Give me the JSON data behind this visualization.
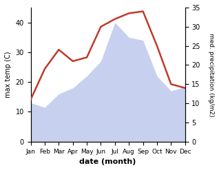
{
  "months": [
    "Jan",
    "Feb",
    "Mar",
    "Apr",
    "May",
    "Jun",
    "Jul",
    "Aug",
    "Sep",
    "Oct",
    "Nov",
    "Dec"
  ],
  "max_temp": [
    13,
    11.5,
    16,
    18,
    22,
    27,
    40,
    35,
    34,
    22,
    17,
    18.5
  ],
  "precipitation": [
    11,
    19,
    24,
    21,
    22,
    30,
    32,
    33.5,
    34,
    25,
    15,
    14
  ],
  "temp_color": "#c0392b",
  "precip_fill_color": "#c8d0f0",
  "temp_ylim": [
    0,
    45
  ],
  "precip_ylim": [
    0,
    35
  ],
  "temp_yticks": [
    0,
    10,
    20,
    30,
    40
  ],
  "precip_yticks": [
    0,
    5,
    10,
    15,
    20,
    25,
    30,
    35
  ],
  "ylabel_left": "max temp (C)",
  "ylabel_right": "med. precipitation (kg/m2)",
  "xlabel": "date (month)",
  "figsize": [
    3.18,
    2.47
  ],
  "dpi": 100
}
